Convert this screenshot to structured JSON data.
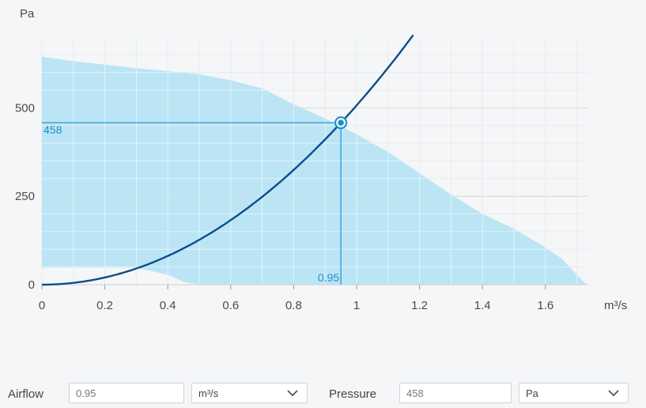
{
  "chart_data": {
    "type": "line",
    "x_unit": "m³/s",
    "y_unit": "Pa",
    "xlim": [
      0,
      1.75
    ],
    "ylim": [
      0,
      700
    ],
    "x_ticks": [
      0,
      0.2,
      0.4,
      0.6,
      0.8,
      1,
      1.2,
      1.4,
      1.6
    ],
    "x_tick_labels": [
      "0",
      "0.2",
      "0.4",
      "0.6",
      "0.8",
      "1",
      "1.2",
      "1.4",
      "1.6"
    ],
    "y_ticks": [
      0,
      250,
      500
    ],
    "y_tick_labels": [
      "0",
      "250",
      "500"
    ],
    "grid": true,
    "operating_range": {
      "upper": [
        [
          0,
          645
        ],
        [
          0.1,
          632
        ],
        [
          0.2,
          622
        ],
        [
          0.3,
          612
        ],
        [
          0.4,
          604
        ],
        [
          0.5,
          595
        ],
        [
          0.6,
          578
        ],
        [
          0.7,
          555
        ],
        [
          0.8,
          510
        ],
        [
          0.9,
          470
        ],
        [
          1.0,
          425
        ],
        [
          1.1,
          375
        ],
        [
          1.2,
          315
        ],
        [
          1.3,
          255
        ],
        [
          1.4,
          200
        ],
        [
          1.5,
          158
        ],
        [
          1.6,
          105
        ],
        [
          1.65,
          75
        ],
        [
          1.73,
          0
        ]
      ],
      "lower": [
        [
          0,
          48
        ],
        [
          0.3,
          48
        ],
        [
          0.4,
          28
        ],
        [
          0.45,
          8
        ],
        [
          0.5,
          0
        ]
      ]
    },
    "system_curve": {
      "coefficient": 507,
      "x_max": 1.18
    },
    "operating_point": {
      "x": 0.95,
      "y": 458,
      "x_label": "0.95",
      "y_label": "458"
    },
    "colors": {
      "range_fill": "#b5e3f4",
      "curve": "#0a4e8c",
      "marker": "#1f8ecf",
      "grid_major": "#d9d9d9",
      "grid_minor": "#e9ecef"
    }
  },
  "controls": {
    "airflow_label": "Airflow",
    "airflow_value": "0.95",
    "airflow_unit": "m³/s",
    "pressure_label": "Pressure",
    "pressure_value": "458",
    "pressure_unit": "Pa"
  }
}
